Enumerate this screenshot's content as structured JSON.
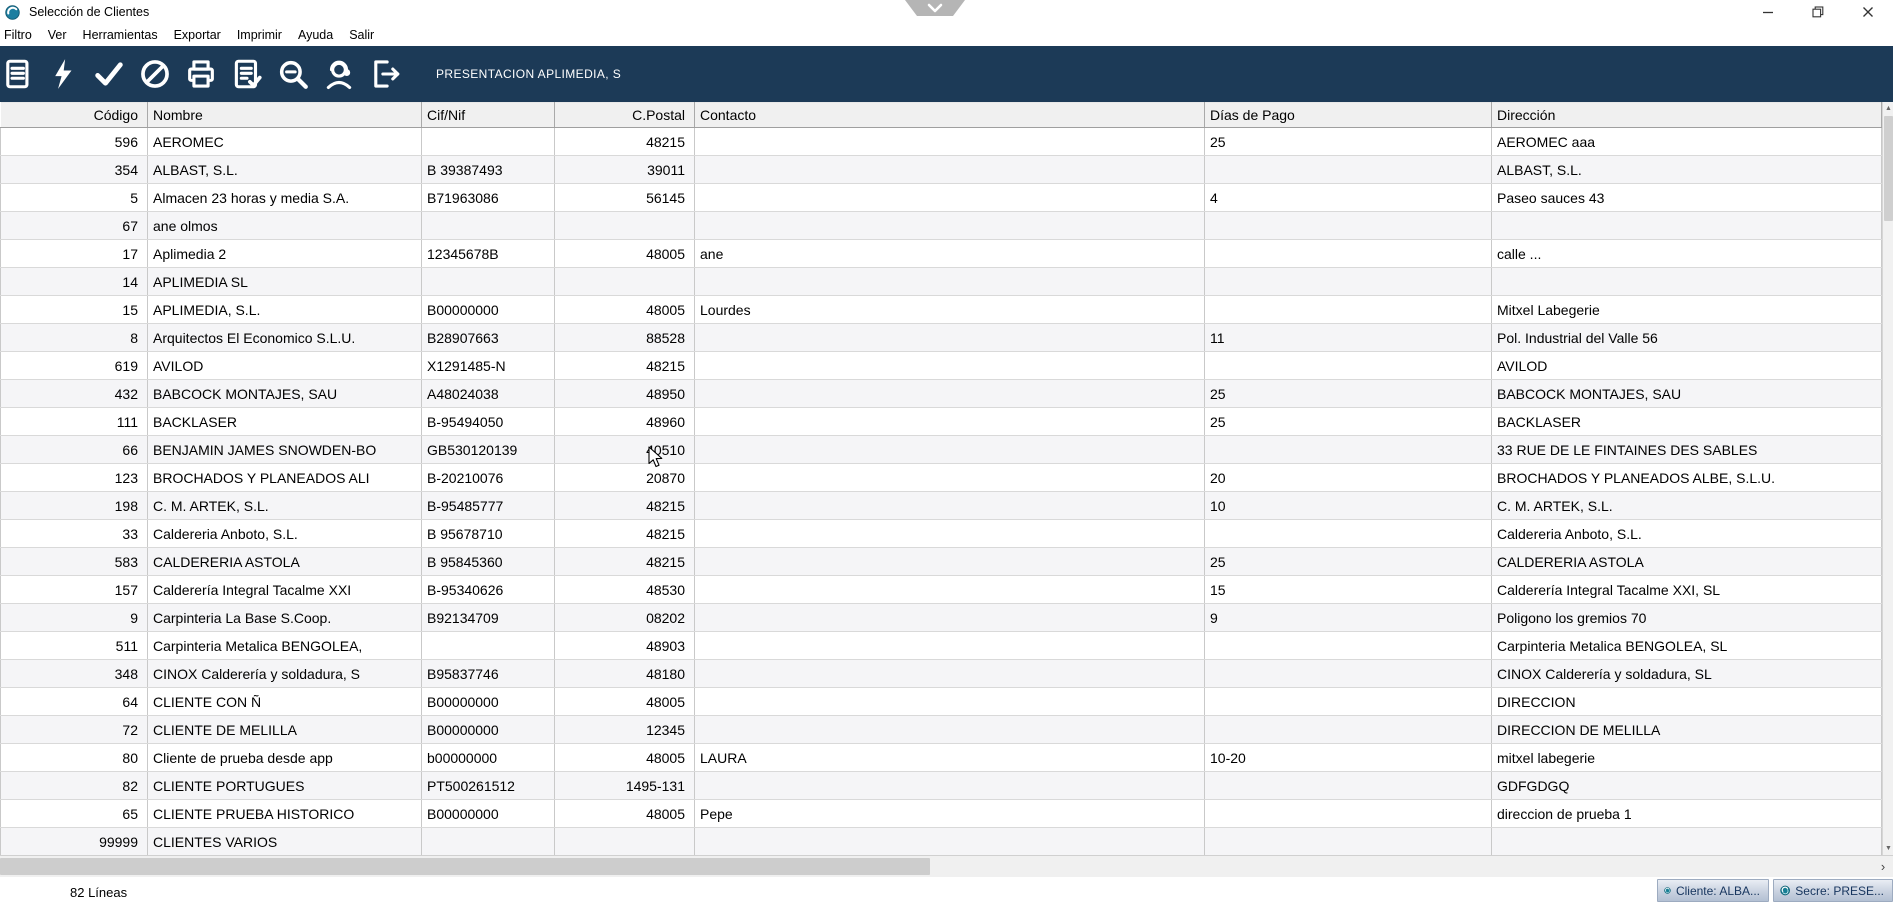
{
  "window": {
    "title": "Selección de Clientes",
    "controls": [
      {
        "name": "minimize-icon"
      },
      {
        "name": "restore-icon"
      },
      {
        "name": "close-icon"
      }
    ],
    "notch_icon": "chevron-down-icon"
  },
  "menu": {
    "items": [
      "Filtro",
      "Ver",
      "Herramientas",
      "Exportar",
      "Imprimir",
      "Ayuda",
      "Salir"
    ]
  },
  "toolbar": {
    "caption": "PRESENTACION APLIMEDIA, S",
    "background_color": "#1c3a57",
    "icons": [
      {
        "name": "notebook-icon"
      },
      {
        "name": "lightning-icon"
      },
      {
        "name": "check-icon"
      },
      {
        "name": "cancel-icon"
      },
      {
        "name": "printer-icon"
      },
      {
        "name": "list-check-icon"
      },
      {
        "name": "search-icon"
      },
      {
        "name": "support-icon"
      },
      {
        "name": "exit-icon"
      }
    ]
  },
  "table": {
    "columns": [
      {
        "key": "codigo",
        "label": "Código"
      },
      {
        "key": "nombre",
        "label": "Nombre"
      },
      {
        "key": "cif",
        "label": "Cif/Nif"
      },
      {
        "key": "cpostal",
        "label": "C.Postal"
      },
      {
        "key": "contacto",
        "label": "Contacto"
      },
      {
        "key": "dias",
        "label": "Días de Pago"
      },
      {
        "key": "direccion",
        "label": "Dirección"
      }
    ],
    "rows": [
      [
        "596",
        "AEROMEC",
        "",
        "48215",
        "",
        "25",
        "AEROMEC aaa"
      ],
      [
        "354",
        "ALBAST, S.L.",
        "B 39387493",
        "39011",
        "",
        "",
        "ALBAST, S.L."
      ],
      [
        "5",
        "Almacen 23 horas y media S.A.",
        "B71963086",
        "56145",
        "",
        "4",
        "Paseo sauces 43"
      ],
      [
        "67",
        "ane olmos",
        "",
        "",
        "",
        "",
        ""
      ],
      [
        "17",
        "Aplimedia 2",
        "12345678B",
        "48005",
        "ane",
        "",
        "calle ..."
      ],
      [
        "14",
        "APLIMEDIA SL",
        "",
        "",
        "",
        "",
        ""
      ],
      [
        "15",
        "APLIMEDIA, S.L.",
        "B00000000",
        "48005",
        "Lourdes",
        "",
        "Mitxel Labegerie"
      ],
      [
        "8",
        "Arquitectos El Economico S.L.U.",
        "B28907663",
        "88528",
        "",
        "11",
        "Pol. Industrial del Valle 56"
      ],
      [
        "619",
        "AVILOD",
        "X1291485-N",
        "48215",
        "",
        "",
        "AVILOD"
      ],
      [
        "432",
        "BABCOCK MONTAJES, SAU",
        "A48024038",
        "48950",
        "",
        "25",
        "BABCOCK MONTAJES, SAU"
      ],
      [
        "111",
        "BACKLASER",
        "B-95494050",
        "48960",
        "",
        "25",
        "BACKLASER"
      ],
      [
        "66",
        "BENJAMIN JAMES SNOWDEN-BO",
        "GB530120139",
        "40510",
        "",
        "",
        "33 RUE DE LE FINTAINES DES SABLES"
      ],
      [
        "123",
        "BROCHADOS Y PLANEADOS ALI",
        "B-20210076",
        "20870",
        "",
        "20",
        "BROCHADOS Y PLANEADOS ALBE, S.L.U."
      ],
      [
        "198",
        "C. M. ARTEK, S.L.",
        "B-95485777",
        "48215",
        "",
        "10",
        "C. M. ARTEK, S.L."
      ],
      [
        "33",
        "Caldereria Anboto, S.L.",
        "B 95678710",
        "48215",
        "",
        "",
        "Caldereria Anboto, S.L."
      ],
      [
        "583",
        "CALDERERIA ASTOLA",
        "B 95845360",
        "48215",
        "",
        "25",
        "CALDERERIA ASTOLA"
      ],
      [
        "157",
        "Calderería Integral Tacalme XXI",
        "B-95340626",
        "48530",
        "",
        "15",
        "Calderería Integral Tacalme XXI, SL"
      ],
      [
        "9",
        "Carpinteria La Base S.Coop.",
        "B92134709",
        "08202",
        "",
        "9",
        "Poligono los gremios 70"
      ],
      [
        "511",
        "Carpinteria Metalica BENGOLEA,",
        "",
        "48903",
        "",
        "",
        "Carpinteria Metalica BENGOLEA, SL"
      ],
      [
        "348",
        "CINOX Calderería y soldadura, S",
        "B95837746",
        "48180",
        "",
        "",
        "CINOX Calderería y soldadura, SL"
      ],
      [
        "64",
        "CLIENTE CON Ñ",
        "B00000000",
        "48005",
        "",
        "",
        "DIRECCION"
      ],
      [
        "72",
        "CLIENTE DE MELILLA",
        "B00000000",
        "12345",
        "",
        "",
        "DIRECCION DE MELILLA"
      ],
      [
        "80",
        "Cliente de prueba desde app",
        "b00000000",
        "48005",
        "LAURA",
        "10-20",
        "mitxel labegerie"
      ],
      [
        "82",
        "CLIENTE PORTUGUES",
        "PT500261512",
        "1495-131",
        "",
        "",
        "GDFGDGQ"
      ],
      [
        "65",
        "CLIENTE PRUEBA HISTORICO",
        "B00000000",
        "48005",
        "Pepe",
        "",
        "direccion de prueba 1"
      ],
      [
        "99999",
        "CLIENTES VARIOS",
        "",
        "",
        "",
        "",
        ""
      ]
    ]
  },
  "statusbar": {
    "line_count": "82 Líneas",
    "panels": [
      {
        "icon": "refresh-circle-icon",
        "label": "Cliente: ALBA..."
      },
      {
        "icon": "refresh-circle-icon",
        "label": "Secre: PRESE..."
      }
    ],
    "panel_icon_color": "#177e94",
    "panel_text_color": "#17355e"
  },
  "colors": {
    "toolbar_navy": "#1c3a57",
    "header_bg": "#f0f0f0",
    "alt_row_bg": "#f5f5f7",
    "grid_line": "#c9c9c9",
    "scroll_thumb": "#cdcdcd"
  }
}
